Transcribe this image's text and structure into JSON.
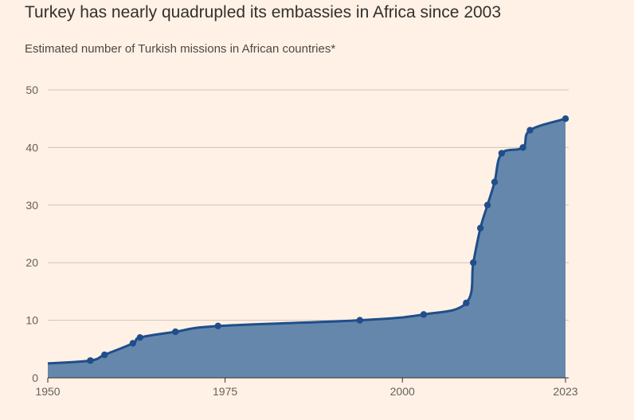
{
  "title": "Turkey has nearly quadrupled its embassies in Africa since 2003",
  "subtitle": "Estimated number of Turkish missions in African countries*",
  "colors": {
    "background": "#FFF1E5",
    "area_fill": "#6587AC",
    "line": "#1F4E8A",
    "gridline": "#CFC3B9",
    "text": "#33302E"
  },
  "chart_data": {
    "type": "area",
    "title": "Turkey has nearly quadrupled its embassies in Africa since 2003",
    "subtitle": "Estimated number of Turkish missions in African countries*",
    "xlabel": "",
    "ylabel": "",
    "xlim": [
      1950,
      2023
    ],
    "ylim": [
      0,
      50
    ],
    "grid": true,
    "x_ticks": [
      1950,
      1975,
      2000,
      2023
    ],
    "y_ticks": [
      0,
      10,
      20,
      30,
      40,
      50
    ],
    "series": [
      {
        "x": [
          1950,
          1956,
          1958,
          1962,
          1963,
          1968,
          1974,
          1994,
          2003,
          2009,
          2010,
          2011,
          2012,
          2013,
          2014,
          2017,
          2018,
          2023
        ],
        "y": [
          2.5,
          3,
          4,
          6,
          7,
          8,
          9,
          10,
          11,
          13,
          20,
          26,
          30,
          34,
          39,
          40,
          43,
          45
        ],
        "markers": [
          false,
          true,
          true,
          true,
          true,
          true,
          true,
          true,
          true,
          true,
          true,
          true,
          true,
          true,
          true,
          true,
          true,
          true
        ]
      }
    ]
  }
}
